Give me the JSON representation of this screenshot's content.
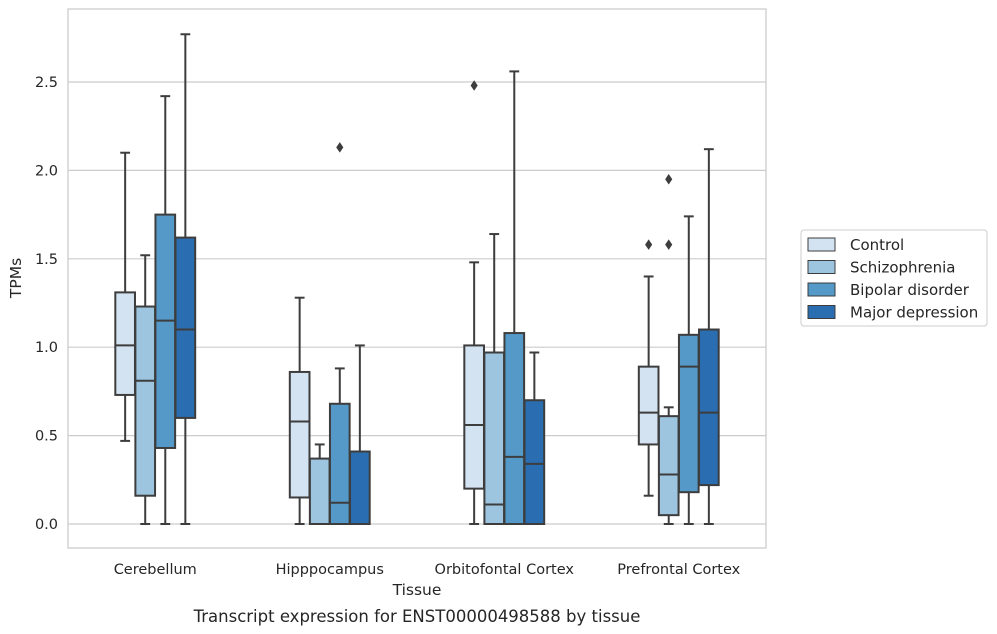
{
  "chart_data": {
    "type": "box",
    "xlabel": "Tissue",
    "ylabel": "TPMs",
    "caption": "Transcript expression for ENST00000498588 by tissue",
    "ylim": [
      -0.13,
      2.92
    ],
    "yticks": [
      "0.0",
      "0.5",
      "1.0",
      "1.5",
      "2.0",
      "2.5"
    ],
    "grid": "horizontal",
    "legend_position": "right",
    "categories": [
      "Cerebellum",
      "Hipppocampus",
      "Orbitofontal Cortex",
      "Prefrontal Cortex"
    ],
    "series": [
      {
        "name": "Control",
        "color": "#d4e3f2",
        "boxes": [
          {
            "whislo": 0.47,
            "q1": 0.73,
            "med": 1.01,
            "q3": 1.31,
            "whishi": 2.1,
            "fliers": []
          },
          {
            "whislo": 0.0,
            "q1": 0.15,
            "med": 0.58,
            "q3": 0.86,
            "whishi": 1.28,
            "fliers": []
          },
          {
            "whislo": 0.0,
            "q1": 0.2,
            "med": 0.56,
            "q3": 1.01,
            "whishi": 1.48,
            "fliers": [
              2.48
            ]
          },
          {
            "whislo": 0.16,
            "q1": 0.45,
            "med": 0.63,
            "q3": 0.89,
            "whishi": 1.4,
            "fliers": [
              1.58
            ]
          }
        ]
      },
      {
        "name": "Schizophrenia",
        "color": "#9dc5df",
        "boxes": [
          {
            "whislo": 0.0,
            "q1": 0.16,
            "med": 0.81,
            "q3": 1.23,
            "whishi": 1.52,
            "fliers": []
          },
          {
            "whislo": 0.0,
            "q1": 0.0,
            "med": 0.0,
            "q3": 0.37,
            "whishi": 0.45,
            "fliers": []
          },
          {
            "whislo": 0.0,
            "q1": 0.0,
            "med": 0.11,
            "q3": 0.97,
            "whishi": 1.64,
            "fliers": []
          },
          {
            "whislo": 0.0,
            "q1": 0.05,
            "med": 0.28,
            "q3": 0.61,
            "whishi": 0.66,
            "fliers": [
              1.95,
              1.58
            ]
          }
        ]
      },
      {
        "name": "Bipolar disorder",
        "color": "#5599c8",
        "boxes": [
          {
            "whislo": 0.0,
            "q1": 0.43,
            "med": 1.15,
            "q3": 1.75,
            "whishi": 2.42,
            "fliers": []
          },
          {
            "whislo": 0.0,
            "q1": 0.0,
            "med": 0.12,
            "q3": 0.68,
            "whishi": 0.88,
            "fliers": [
              2.13
            ]
          },
          {
            "whislo": 0.0,
            "q1": 0.0,
            "med": 0.38,
            "q3": 1.08,
            "whishi": 2.56,
            "fliers": []
          },
          {
            "whislo": 0.0,
            "q1": 0.18,
            "med": 0.89,
            "q3": 1.07,
            "whishi": 1.74,
            "fliers": []
          }
        ]
      },
      {
        "name": "Major depression",
        "color": "#2a6db0",
        "boxes": [
          {
            "whislo": 0.0,
            "q1": 0.6,
            "med": 1.1,
            "q3": 1.62,
            "whishi": 2.77,
            "fliers": []
          },
          {
            "whislo": 0.0,
            "q1": 0.0,
            "med": 0.0,
            "q3": 0.41,
            "whishi": 1.01,
            "fliers": []
          },
          {
            "whislo": 0.0,
            "q1": 0.0,
            "med": 0.34,
            "q3": 0.7,
            "whishi": 0.97,
            "fliers": []
          },
          {
            "whislo": 0.0,
            "q1": 0.22,
            "med": 0.63,
            "q3": 1.1,
            "whishi": 2.12,
            "fliers": []
          }
        ]
      }
    ]
  }
}
